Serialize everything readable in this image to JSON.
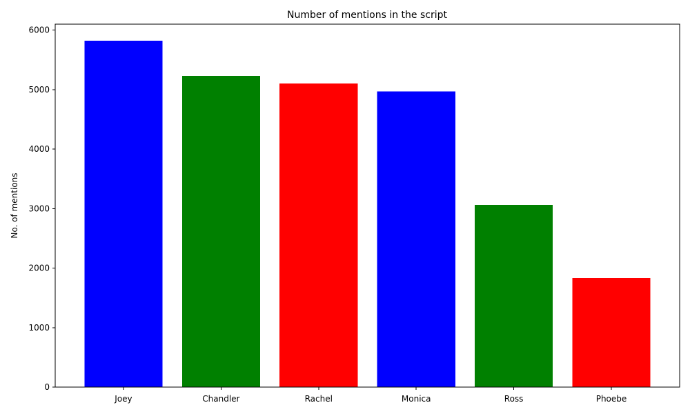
{
  "chart_data": {
    "type": "bar",
    "title": "Number of mentions in the script",
    "xlabel": "",
    "ylabel": "No. of mentions",
    "categories": [
      "Joey",
      "Chandler",
      "Rachel",
      "Monica",
      "Ross",
      "Phoebe"
    ],
    "values": [
      5820,
      5230,
      5100,
      4970,
      3060,
      1830
    ],
    "bar_colors": [
      "#0000ff",
      "#008000",
      "#ff0000",
      "#0000ff",
      "#008000",
      "#ff0000"
    ],
    "ylim": [
      0,
      6100
    ],
    "yticks": [
      0,
      1000,
      2000,
      3000,
      4000,
      5000,
      6000
    ],
    "yticklabels": [
      "0",
      "1000",
      "2000",
      "3000",
      "4000",
      "5000",
      "6000"
    ],
    "grid": false,
    "legend": "none"
  }
}
